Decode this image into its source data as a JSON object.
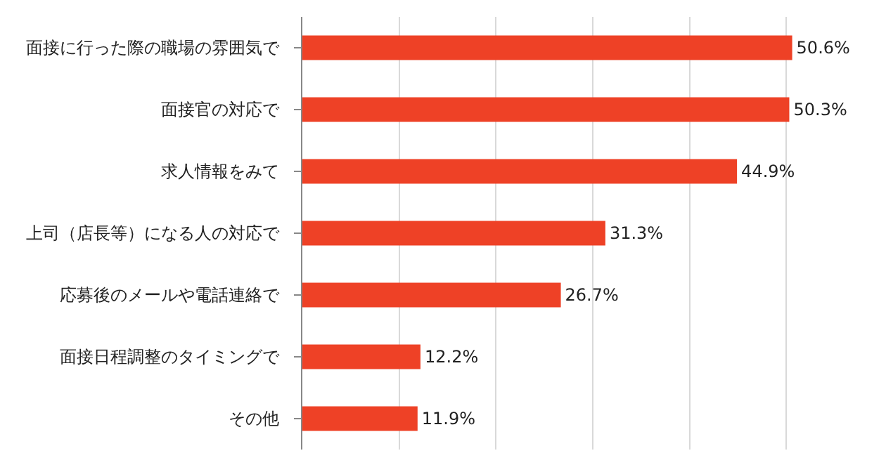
{
  "chart_data": {
    "type": "bar",
    "orientation": "horizontal",
    "categories": [
      "面接に行った際の職場の雰囲気で",
      "面接官の対応で",
      "求人情報をみて",
      "上司（店長等）になる人の対応で",
      "応募後のメールや電話連絡で",
      "面接日程調整のタイミングで",
      "その他"
    ],
    "values": [
      50.6,
      50.3,
      44.9,
      31.3,
      26.7,
      12.2,
      11.9
    ],
    "value_labels": [
      "50.6%",
      "50.3%",
      "44.9%",
      "31.3%",
      "26.7%",
      "12.2%",
      "11.9%"
    ],
    "color": "#ee4126",
    "xlim": [
      0,
      60
    ],
    "xticks": [
      {
        "value": 10,
        "label": null
      },
      {
        "value": 20,
        "label": null
      },
      {
        "value": 30,
        "label": null
      },
      {
        "value": 40,
        "label": null
      },
      {
        "value": 50,
        "label": null
      }
    ],
    "grid": "x",
    "tick_labels": "y"
  }
}
